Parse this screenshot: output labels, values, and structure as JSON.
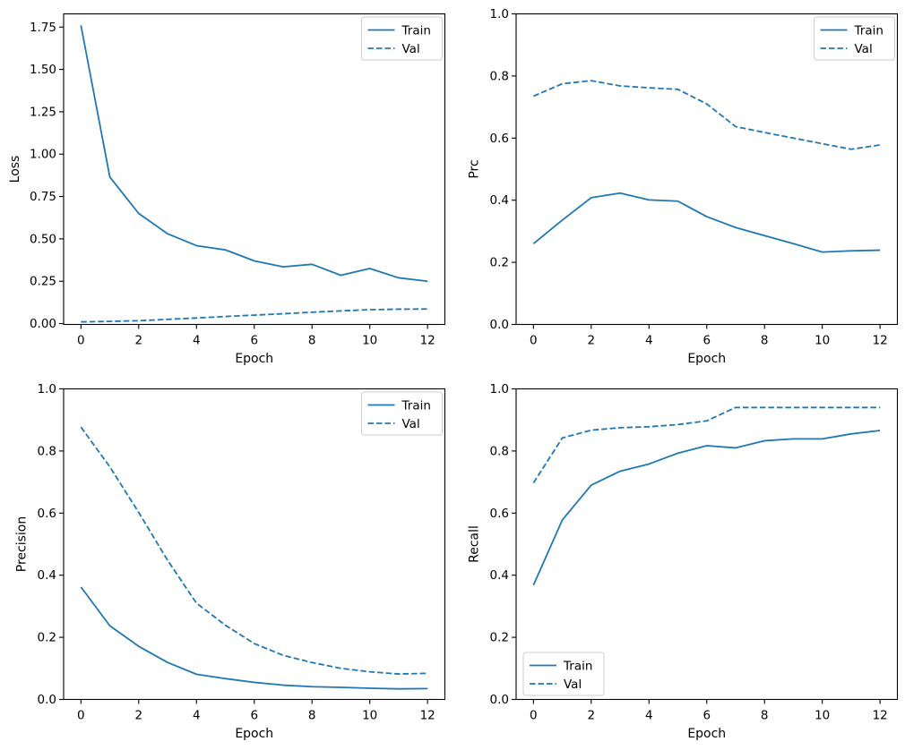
{
  "figure": {
    "background_color": "#ffffff",
    "line_color": "#1f77b4",
    "legend_border_color": "#cccccc",
    "legend_background_color": "#ffffff"
  },
  "chart_data": [
    {
      "id": "loss",
      "type": "line",
      "title": "",
      "xlabel": "Epoch",
      "ylabel": "Loss",
      "x": [
        0,
        1,
        2,
        3,
        4,
        5,
        6,
        7,
        8,
        9,
        10,
        11,
        12
      ],
      "series": [
        {
          "name": "Train",
          "line_style": "solid",
          "values": [
            1.76,
            0.865,
            0.65,
            0.53,
            0.46,
            0.435,
            0.37,
            0.335,
            0.35,
            0.285,
            0.325,
            0.27,
            0.25
          ]
        },
        {
          "name": "Val",
          "line_style": "dashed",
          "values": [
            0.01,
            0.013,
            0.017,
            0.025,
            0.033,
            0.042,
            0.05,
            0.058,
            0.067,
            0.075,
            0.082,
            0.085,
            0.086
          ]
        }
      ],
      "xlim": [
        -0.6,
        12.6
      ],
      "ylim": [
        -0.005,
        1.828
      ],
      "xticks": {
        "values": [
          0,
          2,
          4,
          6,
          8,
          10,
          12
        ],
        "labels": [
          "0",
          "2",
          "4",
          "6",
          "8",
          "10",
          "12"
        ]
      },
      "yticks": {
        "values": [
          0,
          0.25,
          0.5,
          0.75,
          1.0,
          1.25,
          1.5,
          1.75
        ],
        "labels": [
          "0.00",
          "0.25",
          "0.50",
          "0.75",
          "1.00",
          "1.25",
          "1.50",
          "1.75"
        ]
      },
      "legend": {
        "position": "upper right",
        "entries": [
          "Train",
          "Val"
        ]
      },
      "grid": false
    },
    {
      "id": "prc",
      "type": "line",
      "title": "",
      "xlabel": "Epoch",
      "ylabel": "Prc",
      "x": [
        0,
        1,
        2,
        3,
        4,
        5,
        6,
        7,
        8,
        9,
        10,
        11,
        12
      ],
      "series": [
        {
          "name": "Train",
          "line_style": "solid",
          "values": [
            0.26,
            0.336,
            0.408,
            0.423,
            0.401,
            0.397,
            0.347,
            0.312,
            0.286,
            0.26,
            0.233,
            0.237,
            0.239
          ]
        },
        {
          "name": "Val",
          "line_style": "dashed",
          "values": [
            0.735,
            0.775,
            0.785,
            0.768,
            0.762,
            0.757,
            0.71,
            0.637,
            0.618,
            0.6,
            0.582,
            0.564,
            0.578
          ]
        }
      ],
      "xlim": [
        -0.6,
        12.6
      ],
      "ylim": [
        0.0,
        1.0
      ],
      "xticks": {
        "values": [
          0,
          2,
          4,
          6,
          8,
          10,
          12
        ],
        "labels": [
          "0",
          "2",
          "4",
          "6",
          "8",
          "10",
          "12"
        ]
      },
      "yticks": {
        "values": [
          0,
          0.2,
          0.4,
          0.6,
          0.8,
          1.0
        ],
        "labels": [
          "0.0",
          "0.2",
          "0.4",
          "0.6",
          "0.8",
          "1.0"
        ]
      },
      "legend": {
        "position": "upper right",
        "entries": [
          "Train",
          "Val"
        ]
      },
      "grid": false
    },
    {
      "id": "precision",
      "type": "line",
      "title": "",
      "xlabel": "Epoch",
      "ylabel": "Precision",
      "x": [
        0,
        1,
        2,
        3,
        4,
        5,
        6,
        7,
        8,
        9,
        10,
        11,
        12
      ],
      "series": [
        {
          "name": "Train",
          "line_style": "solid",
          "values": [
            0.362,
            0.237,
            0.171,
            0.119,
            0.081,
            0.067,
            0.055,
            0.046,
            0.041,
            0.039,
            0.036,
            0.034,
            0.035
          ]
        },
        {
          "name": "Val",
          "line_style": "dashed",
          "values": [
            0.877,
            0.749,
            0.602,
            0.448,
            0.31,
            0.239,
            0.18,
            0.142,
            0.119,
            0.1,
            0.089,
            0.082,
            0.084
          ]
        }
      ],
      "xlim": [
        -0.6,
        12.6
      ],
      "ylim": [
        0.0,
        1.0
      ],
      "xticks": {
        "values": [
          0,
          2,
          4,
          6,
          8,
          10,
          12
        ],
        "labels": [
          "0",
          "2",
          "4",
          "6",
          "8",
          "10",
          "12"
        ]
      },
      "yticks": {
        "values": [
          0,
          0.2,
          0.4,
          0.6,
          0.8,
          1.0
        ],
        "labels": [
          "0.0",
          "0.2",
          "0.4",
          "0.6",
          "0.8",
          "1.0"
        ]
      },
      "legend": {
        "position": "upper right",
        "entries": [
          "Train",
          "Val"
        ]
      },
      "grid": false
    },
    {
      "id": "recall",
      "type": "line",
      "title": "",
      "xlabel": "Epoch",
      "ylabel": "Recall",
      "x": [
        0,
        1,
        2,
        3,
        4,
        5,
        6,
        7,
        8,
        9,
        10,
        11,
        12
      ],
      "series": [
        {
          "name": "Train",
          "line_style": "solid",
          "values": [
            0.368,
            0.578,
            0.69,
            0.735,
            0.758,
            0.793,
            0.817,
            0.81,
            0.833,
            0.839,
            0.839,
            0.855,
            0.866
          ]
        },
        {
          "name": "Val",
          "line_style": "dashed",
          "values": [
            0.697,
            0.842,
            0.867,
            0.875,
            0.878,
            0.885,
            0.897,
            0.94,
            0.94,
            0.94,
            0.94,
            0.94,
            0.94
          ]
        }
      ],
      "xlim": [
        -0.6,
        12.6
      ],
      "ylim": [
        0.0,
        1.0
      ],
      "xticks": {
        "values": [
          0,
          2,
          4,
          6,
          8,
          10,
          12
        ],
        "labels": [
          "0",
          "2",
          "4",
          "6",
          "8",
          "10",
          "12"
        ]
      },
      "yticks": {
        "values": [
          0,
          0.2,
          0.4,
          0.6,
          0.8,
          1.0
        ],
        "labels": [
          "0.0",
          "0.2",
          "0.4",
          "0.6",
          "0.8",
          "1.0"
        ]
      },
      "legend": {
        "position": "lower left",
        "entries": [
          "Train",
          "Val"
        ]
      },
      "grid": false
    }
  ]
}
